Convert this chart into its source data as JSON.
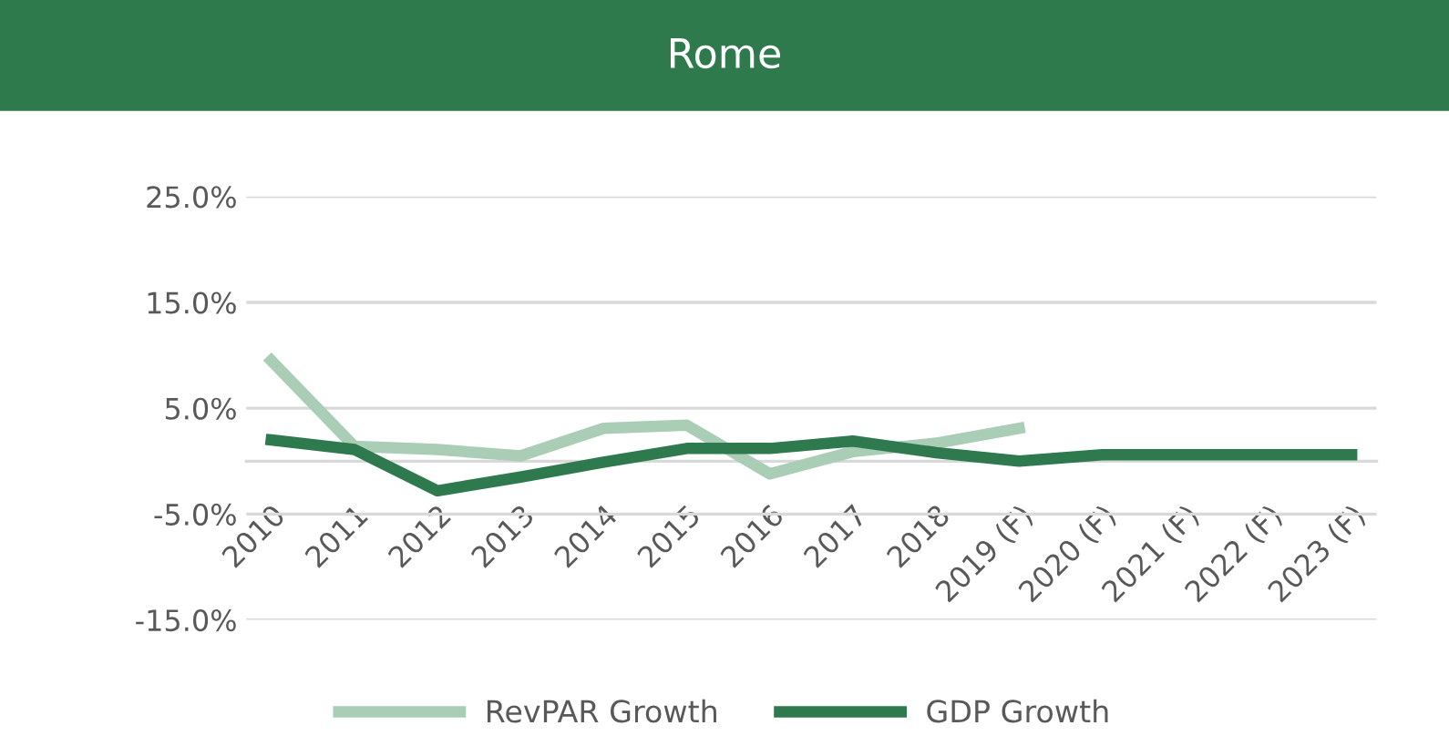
{
  "chart_data": {
    "type": "line",
    "title": "Rome",
    "categories": [
      "2010",
      "2011",
      "2012",
      "2013",
      "2014",
      "2015",
      "2016",
      "2017",
      "2018",
      "2019 (F)",
      "2020 (F)",
      "2021 (F)",
      "2022 (F)",
      "2023 (F)"
    ],
    "series": [
      {
        "name": "RevPAR Growth",
        "color": "#a9cdb5",
        "values": [
          9.5,
          1.4,
          1.1,
          0.5,
          3.1,
          3.4,
          -1.2,
          0.9,
          1.7,
          3.1,
          null,
          null,
          null,
          null
        ]
      },
      {
        "name": "GDP Growth",
        "color": "#2e7a4e",
        "values": [
          2.0,
          1.1,
          -2.8,
          -1.5,
          -0.1,
          1.2,
          1.2,
          1.9,
          0.8,
          0.0,
          0.6,
          0.6,
          0.6,
          0.6
        ]
      }
    ],
    "ylim": [
      -15,
      25
    ],
    "yticks": [
      {
        "value": -15,
        "label": "-15.0%"
      },
      {
        "value": -5,
        "label": "-5.0%"
      },
      {
        "value": 5,
        "label": "5.0%"
      },
      {
        "value": 15,
        "label": "15.0%"
      },
      {
        "value": 25,
        "label": "25.0%"
      }
    ],
    "grid": "y",
    "legend": "bottom",
    "marker": "none",
    "line_style": "solid"
  }
}
